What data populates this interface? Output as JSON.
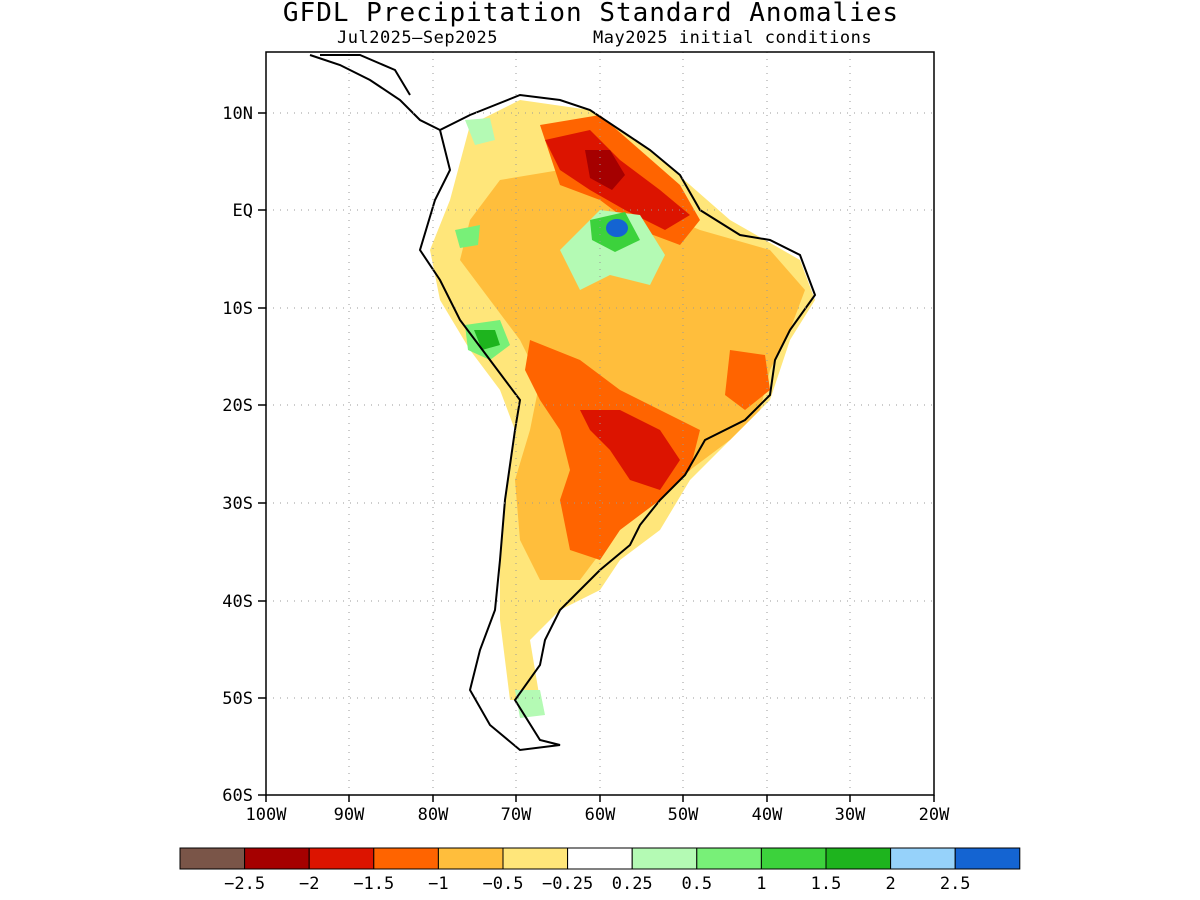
{
  "title": "GFDL Precipitation Standard Anomalies",
  "subtitle_left": "Jul2025–Sep2025",
  "subtitle_right": "May2025 initial conditions",
  "map": {
    "lon_range": [
      -100,
      -20
    ],
    "lat_range": [
      -60,
      15
    ],
    "lat_labels": [
      "10N",
      "EQ",
      "10S",
      "20S",
      "30S",
      "40S",
      "50S",
      "60S"
    ],
    "lon_labels": [
      "100W",
      "90W",
      "80W",
      "70W",
      "60W",
      "50W",
      "40W",
      "30W",
      "20W"
    ],
    "gridlines": "dotted"
  },
  "legend": {
    "colors": [
      "#7a5548",
      "#a50000",
      "#dc1400",
      "#ff6400",
      "#ffbe3c",
      "#ffe67a",
      "#ffffff",
      "#b4fab4",
      "#78f078",
      "#3cd23c",
      "#1eb41e",
      "#96d2fa",
      "#1464d2"
    ],
    "labels": [
      "−2.5",
      "−2",
      "−1.5",
      "−1",
      "−0.5",
      "−0.25",
      "0.25",
      "0.5",
      "1",
      "1.5",
      "2",
      "2.5"
    ]
  }
}
